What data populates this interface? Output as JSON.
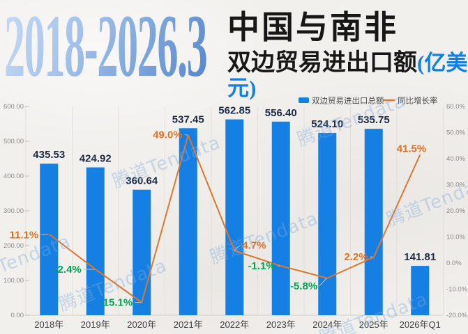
{
  "title": {
    "period": "2018-2026.3",
    "line1": "中国与南非",
    "line2": "双边贸易进出口额",
    "unit": "(亿美元)"
  },
  "watermark_text": "腾道Tendata",
  "legend": [
    {
      "label": "双边贸易进出口总额",
      "type": "bar"
    },
    {
      "label": "同比增长率",
      "type": "line"
    }
  ],
  "chart_data": {
    "type": "bar+line combo, dual axis",
    "categories": [
      "2018年",
      "2019年",
      "2020年",
      "2021年",
      "2022年",
      "2023年",
      "2024年",
      "2025年",
      "2026年Q1"
    ],
    "series": [
      {
        "name": "双边贸易进出口总额",
        "type": "bar",
        "axis": "left",
        "values": [
          435.53,
          424.92,
          360.64,
          537.45,
          562.85,
          556.4,
          524.1,
          535.75,
          141.81
        ],
        "value_labels": [
          "435.53",
          "424.92",
          "360.64",
          "537.45",
          "562.85",
          "556.40",
          "524.10",
          "535.75",
          "141.81"
        ]
      },
      {
        "name": "同比增长率",
        "type": "line",
        "axis": "right",
        "values": [
          11.1,
          -2.4,
          -15.1,
          49.0,
          4.7,
          -1.1,
          -5.8,
          2.2,
          41.5
        ],
        "value_labels": [
          "11.1%",
          "-2.4%",
          "-15.1%",
          "49.0%",
          "4.7%",
          "-1.1%",
          "-5.8%",
          "2.2%",
          "41.5%"
        ]
      }
    ],
    "left_axis": {
      "min": 0,
      "max": 600,
      "tick_labels": [
        "600.00",
        "500.00",
        "400.00",
        "300.00",
        "200.00",
        "100.00",
        "0.00"
      ]
    },
    "right_axis": {
      "min": -20,
      "max": 60,
      "tick_labels": [
        "60.0%",
        "50.0%",
        "40.0%",
        "30.0%",
        "20.0%",
        "10.0%",
        "0.0%",
        "-10.0%",
        "-20.0%"
      ]
    },
    "grid": "vertical-only",
    "legend_position": "top-right",
    "colors": {
      "bar": "#157fe3",
      "line": "#dd762e",
      "positive_label": "#e2711d",
      "negative_label": "#00a551",
      "value_label": "#1d2a44",
      "x_label": "#3c3c3c",
      "axis_tick": "#8b8b8b",
      "grid_line": "#e2ded9",
      "legend_text": "#4a4a4a"
    }
  }
}
